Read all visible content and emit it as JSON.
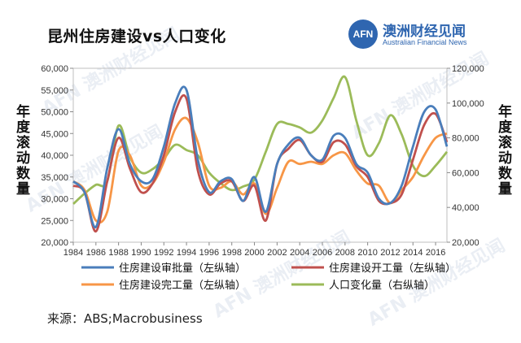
{
  "header": {
    "title": "昆州住房建设vs人口变化",
    "brand_logo": "AFN",
    "brand_name_cn": "澳洲财经见闻",
    "brand_name_en": "Australian Financial News"
  },
  "footer": {
    "source": "来源：ABS;Macrobusiness"
  },
  "colors": {
    "approvals": "#4a7ebb",
    "starts": "#c0504d",
    "completions": "#f79646",
    "population": "#9bbb59"
  },
  "chart_data": {
    "type": "line",
    "y_left_label": "年度滚动数量",
    "y_right_label": "年度滚动数量",
    "y_left_ticks": [
      "20,000",
      "25,000",
      "30,000",
      "35,000",
      "40,000",
      "45,000",
      "50,000",
      "55,000",
      "60,000"
    ],
    "y_right_ticks": [
      "20,000",
      "40,000",
      "60,000",
      "80,000",
      "100,000",
      "120,000"
    ],
    "x_ticks": [
      "1984",
      "1986",
      "1988",
      "1990",
      "1992",
      "1994",
      "1996",
      "1998",
      "2000",
      "2002",
      "2004",
      "2006",
      "2008",
      "2010",
      "2012",
      "2014",
      "2016"
    ],
    "ylim_left": [
      20000,
      60000
    ],
    "ylim_right": [
      20000,
      120000
    ],
    "xlim": [
      1984,
      2017
    ],
    "grid": false,
    "legend_position": "bottom",
    "series": [
      {
        "name": "住房建设审批量（左纵轴）",
        "axis": "left",
        "color": "#4a7ebb",
        "x": [
          1984,
          1985,
          1986,
          1987,
          1988,
          1989,
          1990,
          1991,
          1992,
          1993,
          1994,
          1995,
          1996,
          1997,
          1998,
          1999,
          2000,
          2001,
          2002,
          2003,
          2004,
          2005,
          2006,
          2007,
          2008,
          2009,
          2010,
          2011,
          2012,
          2013,
          2014,
          2015,
          2016,
          2017
        ],
        "y": [
          34000,
          31500,
          23500,
          37000,
          46000,
          38000,
          34000,
          34500,
          42000,
          52000,
          55000,
          39000,
          31500,
          34000,
          34500,
          29500,
          35000,
          27000,
          38000,
          42500,
          44000,
          40000,
          39000,
          44500,
          44000,
          38000,
          36000,
          30000,
          29000,
          33000,
          42000,
          50000,
          50500,
          42000
        ]
      },
      {
        "name": "住房建设开工量（左纵轴）",
        "axis": "left",
        "color": "#c0504d",
        "x": [
          1984,
          1985,
          1986,
          1987,
          1988,
          1989,
          1990,
          1991,
          1992,
          1993,
          1994,
          1995,
          1996,
          1997,
          1998,
          1999,
          2000,
          2001,
          2002,
          2003,
          2004,
          2005,
          2006,
          2007,
          2008,
          2009,
          2010,
          2011,
          2012,
          2013,
          2014,
          2015,
          2016,
          2017
        ],
        "y": [
          33000,
          31500,
          22500,
          34000,
          44000,
          37000,
          31500,
          33500,
          40000,
          50000,
          53000,
          36500,
          31000,
          33500,
          34000,
          29500,
          33000,
          25000,
          38000,
          41500,
          43500,
          40000,
          38500,
          43000,
          42500,
          37500,
          35000,
          29500,
          29000,
          31000,
          39000,
          47000,
          49500,
          43000
        ]
      },
      {
        "name": "住房建设完工量（左纵轴）",
        "axis": "left",
        "color": "#f79646",
        "x": [
          1984,
          1985,
          1986,
          1987,
          1988,
          1989,
          1990,
          1991,
          1992,
          1993,
          1994,
          1995,
          1996,
          1997,
          1998,
          1999,
          2000,
          2001,
          2002,
          2003,
          2004,
          2005,
          2006,
          2007,
          2008,
          2009,
          2010,
          2011,
          2012,
          2013,
          2014,
          2015,
          2016,
          2017
        ],
        "y": [
          34000,
          32000,
          25000,
          27000,
          41000,
          40000,
          33000,
          33500,
          38500,
          46000,
          48500,
          43000,
          33000,
          32500,
          34000,
          31000,
          33500,
          26500,
          32500,
          38500,
          38000,
          38500,
          38000,
          40000,
          40500,
          36500,
          33500,
          33000,
          29000,
          32000,
          35000,
          40000,
          44000,
          45000
        ]
      },
      {
        "name": "人口变化量（右纵轴）",
        "axis": "right",
        "color": "#9bbb59",
        "x": [
          1984,
          1985,
          1986,
          1987,
          1988,
          1989,
          1990,
          1991,
          1992,
          1993,
          1994,
          1995,
          1996,
          1997,
          1998,
          1999,
          2000,
          2001,
          2002,
          2003,
          2004,
          2005,
          2006,
          2007,
          2008,
          2009,
          2010,
          2011,
          2012,
          2013,
          2014,
          2015,
          2016,
          2017
        ],
        "y": [
          42000,
          48000,
          53000,
          55000,
          87000,
          69000,
          60000,
          62000,
          68000,
          76000,
          73000,
          70000,
          60000,
          54000,
          50000,
          52000,
          56000,
          72000,
          88000,
          88000,
          86000,
          83000,
          90000,
          103000,
          115000,
          90000,
          70000,
          77000,
          93000,
          82000,
          64000,
          58000,
          64000,
          72000
        ]
      }
    ]
  }
}
